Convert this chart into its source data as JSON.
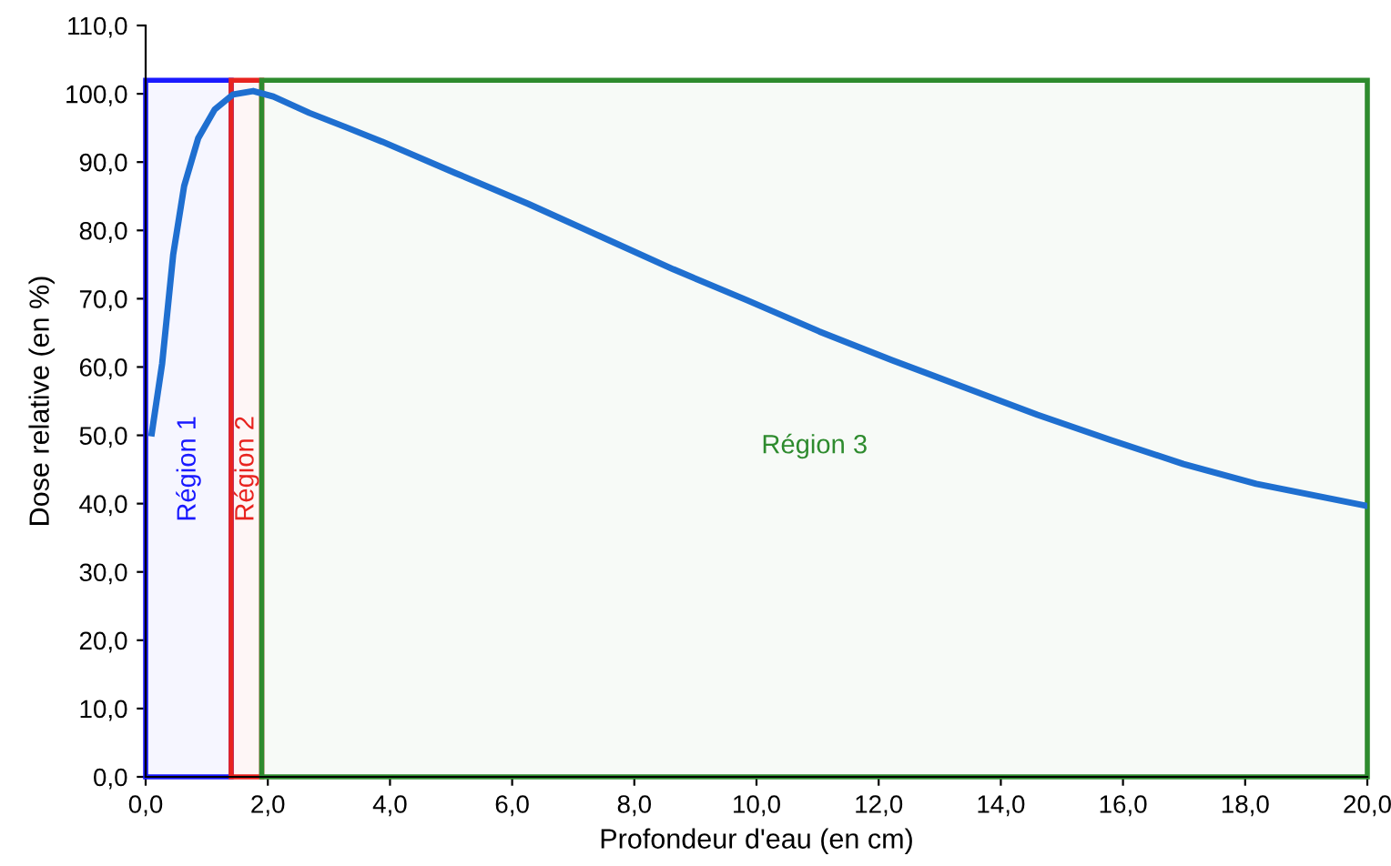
{
  "chart_data": {
    "type": "line",
    "xlabel": "Profondeur d'eau (en cm)",
    "ylabel": "Dose relative (en %)",
    "x": [
      0.1,
      0.27,
      0.45,
      0.63,
      0.86,
      1.13,
      1.43,
      1.76,
      2.09,
      2.68,
      3.28,
      3.87,
      5.07,
      6.26,
      7.45,
      8.64,
      9.84,
      11.03,
      12.22,
      13.41,
      14.6,
      15.8,
      16.99,
      18.18,
      19.97
    ],
    "series": [
      {
        "color": "#1f6fd0",
        "values": [
          50.3,
          60.5,
          76.4,
          86.5,
          93.5,
          97.7,
          99.9,
          100.4,
          99.6,
          97.2,
          95.1,
          93.0,
          88.4,
          83.9,
          79.1,
          74.3,
          69.8,
          65.2,
          61.0,
          57.0,
          53.0,
          49.3,
          45.8,
          42.9,
          39.7
        ]
      }
    ],
    "xlim": [
      0,
      20
    ],
    "ylim": [
      0,
      110
    ],
    "xticks": [
      {
        "value": 0,
        "label": "0,0"
      },
      {
        "value": 2,
        "label": "2,0"
      },
      {
        "value": 4,
        "label": "4,0"
      },
      {
        "value": 6,
        "label": "6,0"
      },
      {
        "value": 8,
        "label": "8,0"
      },
      {
        "value": 10,
        "label": "10,0"
      },
      {
        "value": 12,
        "label": "12,0"
      },
      {
        "value": 14,
        "label": "14,0"
      },
      {
        "value": 16,
        "label": "16,0"
      },
      {
        "value": 18,
        "label": "18,0"
      },
      {
        "value": 20,
        "label": "20,0"
      }
    ],
    "yticks": [
      {
        "value": 0,
        "label": "0,0"
      },
      {
        "value": 10,
        "label": "10,0"
      },
      {
        "value": 20,
        "label": "20,0"
      },
      {
        "value": 30,
        "label": "30,0"
      },
      {
        "value": 40,
        "label": "40,0"
      },
      {
        "value": 50,
        "label": "50,0"
      },
      {
        "value": 60,
        "label": "60,0"
      },
      {
        "value": 70,
        "label": "70,0"
      },
      {
        "value": 80,
        "label": "80,0"
      },
      {
        "value": 90,
        "label": "90,0"
      },
      {
        "value": 100,
        "label": "100,0"
      },
      {
        "value": 110,
        "label": "110,0"
      }
    ],
    "bands": [
      {
        "axis": "x",
        "from": 0,
        "to": 1.4,
        "label": "Région 1",
        "color": "#1a1aff"
      },
      {
        "axis": "x",
        "from": 1.4,
        "to": 1.9,
        "label": "Région 2",
        "color": "#e8231f"
      },
      {
        "axis": "x",
        "from": 1.9,
        "to": 20,
        "label": "Région 3",
        "color": "#2e8b2e"
      }
    ],
    "grid": false,
    "legend": false,
    "marker": "none",
    "line_style": "solid"
  }
}
